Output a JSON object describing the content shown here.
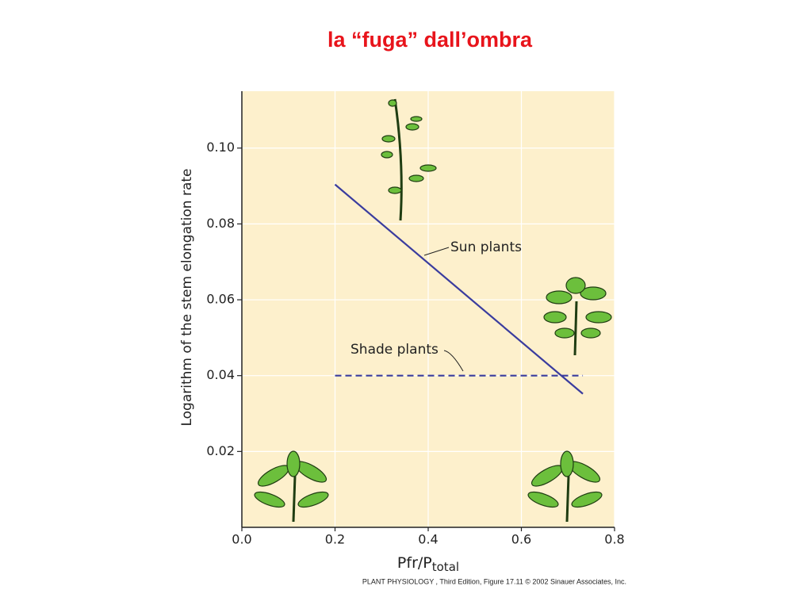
{
  "chart_data": {
    "type": "line",
    "title": "la “fuga” dall’ombra",
    "xlabel": "Pfr/P",
    "xlabel_subscript": "total",
    "ylabel": "Logarithm of the stem elongation rate",
    "source": "PLANT PHYSIOLOGY , Third Edition, Figure 17.11  © 2002 Sinauer Associates, Inc.",
    "xlim": [
      0,
      0.8
    ],
    "ylim": [
      0,
      0.115
    ],
    "xticks": [
      {
        "value": 0,
        "label": "0.0"
      },
      0.2,
      0.4,
      0.6,
      0.8
    ],
    "yticks": [
      0.02,
      0.04,
      0.06,
      0.08,
      {
        "value": 0.1,
        "label": "0.10"
      }
    ],
    "grid": true,
    "background": "#fdf0cc",
    "series": [
      {
        "name": "Sun plants",
        "color": "#3a3c9e",
        "style": "solid",
        "x": [
          0.2,
          0.732
        ],
        "values": [
          0.0904,
          0.0352
        ]
      },
      {
        "name": "Shade plants",
        "color": "#3a3c9e",
        "style": "dashed",
        "x": [
          0.2,
          0.732
        ],
        "values": [
          0.04,
          0.04
        ]
      }
    ]
  }
}
